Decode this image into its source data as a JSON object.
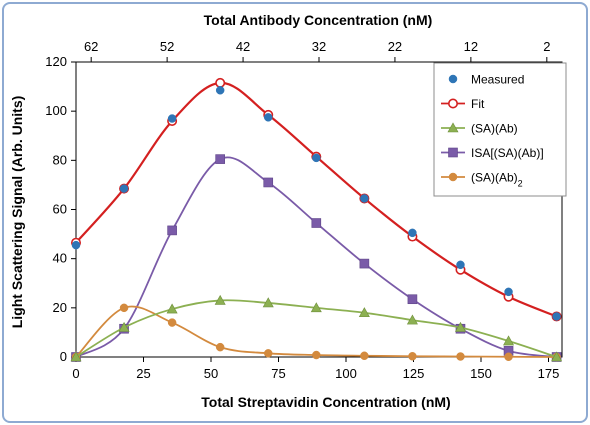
{
  "chart_data": {
    "type": "line",
    "xlabel": "Total Streptavidin Concentration (nM)",
    "x2label": "Total Antibody Concentration (nM)",
    "ylabel": "Light Scattering Signal (Arb. Units)",
    "xlim": [
      0,
      180
    ],
    "x2lim": [
      64,
      0
    ],
    "ylim": [
      0,
      120
    ],
    "x_ticks": [
      0,
      25,
      50,
      75,
      100,
      125,
      150,
      175
    ],
    "x2_ticks": [
      62,
      52,
      42,
      32,
      22,
      12,
      2
    ],
    "y_ticks": [
      0,
      20,
      40,
      60,
      80,
      100,
      120
    ],
    "grid": false,
    "legend_position": "top-right",
    "series": [
      {
        "name": "Measured",
        "kind": "markers",
        "marker": "circle-filled",
        "color": "#2e75b6",
        "x": [
          0,
          17.8,
          35.6,
          53.4,
          71.2,
          89,
          106.8,
          124.6,
          142.4,
          160.2,
          178
        ],
        "y": [
          45.5,
          68.5,
          97,
          108.5,
          97.5,
          81,
          64.5,
          50.5,
          37.5,
          26.5,
          16.5
        ]
      },
      {
        "name": "Fit",
        "kind": "line-markers",
        "marker": "circle-open",
        "color": "#d42020",
        "x": [
          0,
          17.8,
          35.6,
          53.4,
          71.2,
          89,
          106.8,
          124.6,
          142.4,
          160.2,
          178
        ],
        "y": [
          46.5,
          68.5,
          96,
          111.5,
          98.5,
          81.5,
          64.5,
          49,
          35.5,
          24.5,
          16.5
        ]
      },
      {
        "name": "(SA)(Ab)",
        "kind": "line-markers",
        "marker": "triangle",
        "color": "#8cb052",
        "x": [
          0,
          17.8,
          35.6,
          53.4,
          71.2,
          89,
          106.8,
          124.6,
          142.4,
          160.2,
          178
        ],
        "y": [
          0,
          12,
          19.5,
          23,
          22,
          20,
          18,
          15,
          12,
          6.5,
          0
        ]
      },
      {
        "name": "ISA[(SA)(Ab)]",
        "kind": "line-markers",
        "marker": "square",
        "color": "#7a5ba8",
        "x": [
          0,
          17.8,
          35.6,
          53.4,
          71.2,
          89,
          106.8,
          124.6,
          142.4,
          160.2,
          178
        ],
        "y": [
          0,
          11.5,
          51.5,
          80.5,
          71,
          54.5,
          38,
          23.5,
          11.5,
          2.5,
          0
        ]
      },
      {
        "name": "(SA)(Ab)",
        "subscript": "2",
        "kind": "line-markers",
        "marker": "circle-filled",
        "color": "#d38a3e",
        "x": [
          0,
          17.8,
          35.6,
          53.4,
          71.2,
          89,
          106.8,
          124.6,
          142.4,
          160.2,
          178
        ],
        "y": [
          0,
          20,
          14,
          4,
          1.5,
          0.8,
          0.5,
          0.3,
          0.2,
          0.1,
          0
        ]
      }
    ]
  }
}
